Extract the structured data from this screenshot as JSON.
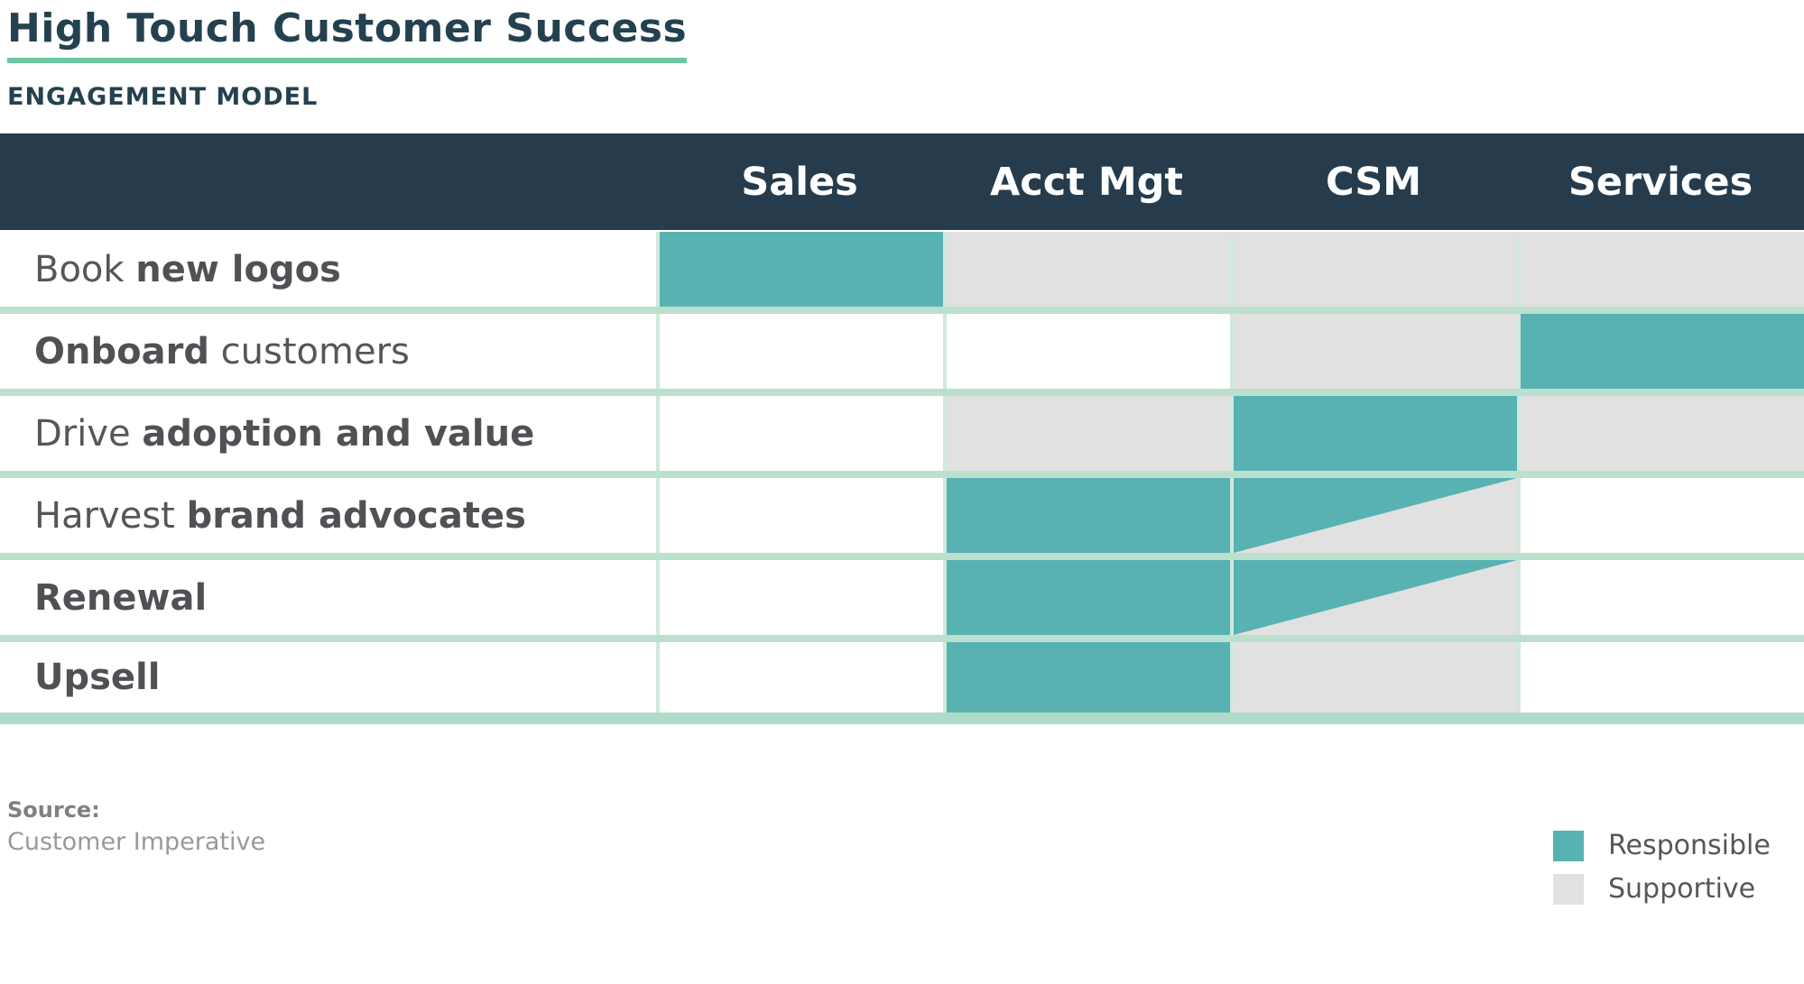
{
  "page": {
    "title": "High Touch Customer Success",
    "subtitle": "ENGAGEMENT MODEL"
  },
  "table": {
    "columns": [
      "Sales",
      "Acct Mgt",
      "CSM",
      "Services"
    ],
    "rows": [
      {
        "label": [
          {
            "text": "Book ",
            "bold": false
          },
          {
            "text": "new logos",
            "bold": true
          }
        ],
        "cells": [
          "responsible",
          "supportive",
          "supportive",
          "supportive"
        ]
      },
      {
        "label": [
          {
            "text": "Onboard",
            "bold": true
          },
          {
            "text": " customers",
            "bold": false
          }
        ],
        "cells": [
          "none",
          "none",
          "supportive",
          "responsible"
        ]
      },
      {
        "label": [
          {
            "text": "Drive ",
            "bold": false
          },
          {
            "text": "adoption and value",
            "bold": true
          }
        ],
        "cells": [
          "none",
          "supportive",
          "responsible",
          "supportive"
        ]
      },
      {
        "label": [
          {
            "text": "Harvest ",
            "bold": false
          },
          {
            "text": "brand advocates",
            "bold": true
          }
        ],
        "cells": [
          "none",
          "responsible",
          "split",
          "none"
        ]
      },
      {
        "label": [
          {
            "text": "Renewal",
            "bold": true
          }
        ],
        "cells": [
          "none",
          "responsible",
          "split",
          "none"
        ]
      },
      {
        "label": [
          {
            "text": "Upsell",
            "bold": true
          }
        ],
        "cells": [
          "none",
          "responsible",
          "supportive",
          "none"
        ]
      }
    ],
    "cell_legend_note": "split = responsible top-left / supportive bottom-right diagonal"
  },
  "footer": {
    "source_label": "Source:",
    "source_value": "Customer Imperative"
  },
  "legend": [
    {
      "key": "responsible",
      "label": "Responsible",
      "color": "#58B2B2"
    },
    {
      "key": "supportive",
      "label": "Supportive",
      "color": "#E2E1E2"
    }
  ],
  "colors": {
    "responsible": "#58B2B2",
    "supportive": "#E2E1E2",
    "header_bg": "#263C4D",
    "title_text": "#24414F",
    "title_underline": "#6BC8A3",
    "row_separator": "#BCE0CE",
    "bottom_border": "#AFDCC8",
    "column_separator": "#CFE9DC"
  }
}
